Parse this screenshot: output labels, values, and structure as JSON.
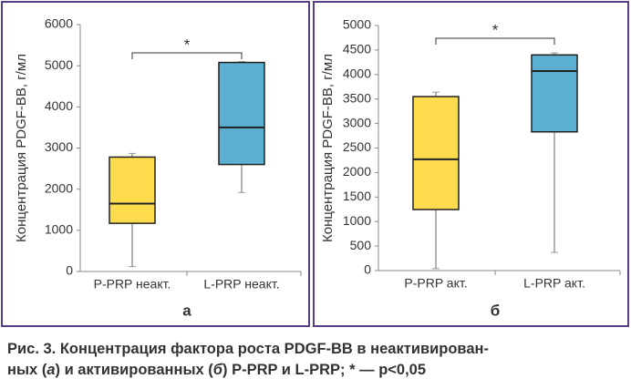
{
  "chart_data": [
    {
      "type": "box",
      "ylabel": "Концентрация PDGF-BB, г/мл",
      "panel_label": "а",
      "annotation": "*",
      "categories": [
        "P-PRP неакт.",
        "L-PRP неакт."
      ],
      "colors": [
        "#fcdc4c",
        "#5bafd0"
      ],
      "boxes": [
        {
          "min": 120,
          "q1": 1170,
          "median": 1650,
          "q3": 2780,
          "max": 2870
        },
        {
          "min": 1920,
          "q1": 2600,
          "median": 3500,
          "q3": 5080,
          "max": 5100
        }
      ],
      "ylim": [
        0,
        6000
      ],
      "yticks": [
        0,
        1000,
        2000,
        3000,
        4000,
        5000,
        6000
      ]
    },
    {
      "type": "box",
      "ylabel": "Концентрация PDGF-BB, г/мл",
      "panel_label": "б",
      "annotation": "*",
      "categories": [
        "P-PRP акт.",
        "L-PRP акт."
      ],
      "colors": [
        "#fcdc4c",
        "#5bafd0"
      ],
      "boxes": [
        {
          "min": 40,
          "q1": 1245,
          "median": 2270,
          "q3": 3550,
          "max": 3640
        },
        {
          "min": 370,
          "q1": 2830,
          "median": 4070,
          "q3": 4400,
          "max": 4440
        }
      ],
      "ylim": [
        0,
        5000
      ],
      "yticks": [
        0,
        500,
        1000,
        1500,
        2000,
        2500,
        3000,
        3500,
        4000,
        4500,
        5000
      ]
    }
  ],
  "caption": [
    "Рис. 3. Концентрация фактора роста PDGF-BB в неактивирован-",
    "ных (",
    "а",
    ") и активированных (",
    "б",
    ") P-PRP и L-PRP; * — p<0,05"
  ]
}
